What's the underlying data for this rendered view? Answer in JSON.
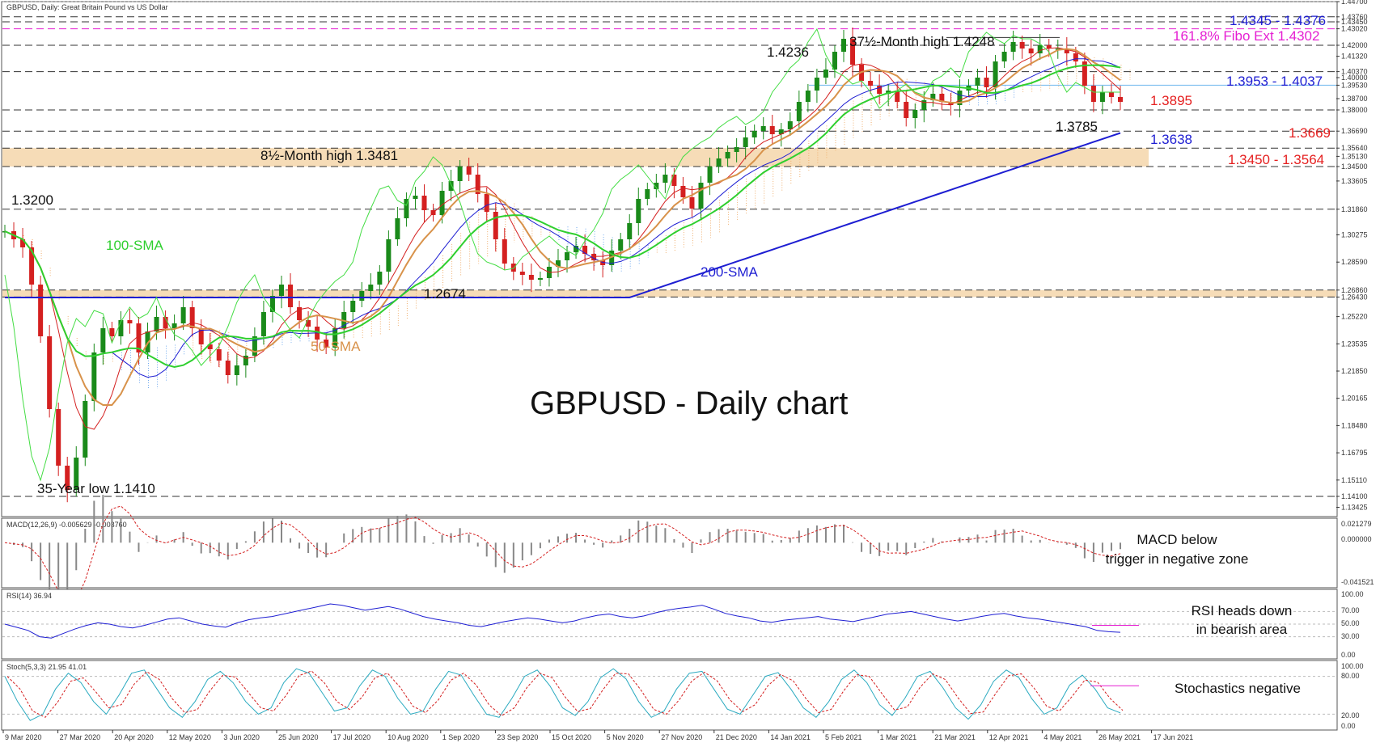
{
  "chart_data": [
    {
      "type": "candlestick",
      "header": "GBPUSD, Daily: Great Britain Pound vs US Dollar",
      "title": "GBPUSD - Daily chart",
      "ylim": [
        1.1285,
        1.447
      ],
      "y_ticks": [
        "1.44700",
        "1.43760",
        "1.43450",
        "1.43020",
        "1.42000",
        "1.41320",
        "1.40370",
        "1.40000",
        "1.39530",
        "1.38700",
        "1.38000",
        "1.36690",
        "1.35640",
        "1.35130",
        "1.34500",
        "1.33605",
        "1.31860",
        "1.30275",
        "1.28590",
        "1.26860",
        "1.26430",
        "1.25220",
        "1.23535",
        "1.21850",
        "1.20165",
        "1.18480",
        "1.16795",
        "1.15110",
        "1.14100",
        "1.13425"
      ],
      "x_labels": [
        "9 Mar 2020",
        "27 Mar 2020",
        "20 Apr 2020",
        "12 May 2020",
        "3 Jun 2020",
        "25 Jun 2020",
        "17 Jul 2020",
        "10 Aug 2020",
        "1 Sep 2020",
        "23 Sep 2020",
        "15 Oct 2020",
        "5 Nov 2020",
        "27 Nov 2020",
        "21 Dec 2020",
        "14 Jan 2021",
        "5 Feb 2021",
        "1 Mar 2021",
        "21 Mar 2021",
        "12 Apr 2021",
        "4 May 2021",
        "26 May 2021",
        "17 Jun 2021"
      ],
      "close_path": [
        1.305,
        1.3,
        1.295,
        1.272,
        1.24,
        1.195,
        1.16,
        1.145,
        1.165,
        1.2,
        1.23,
        1.245,
        1.24,
        1.25,
        1.248,
        1.23,
        1.243,
        1.252,
        1.245,
        1.248,
        1.258,
        1.245,
        1.235,
        1.232,
        1.225,
        1.216,
        1.222,
        1.228,
        1.24,
        1.255,
        1.265,
        1.272,
        1.258,
        1.25,
        1.246,
        1.238,
        1.233,
        1.245,
        1.255,
        1.262,
        1.268,
        1.272,
        1.28,
        1.3,
        1.313,
        1.325,
        1.327,
        1.318,
        1.315,
        1.33,
        1.336,
        1.345,
        1.34,
        1.328,
        1.317,
        1.3,
        1.285,
        1.28,
        1.278,
        1.275,
        1.276,
        1.283,
        1.287,
        1.292,
        1.296,
        1.291,
        1.287,
        1.284,
        1.293,
        1.3,
        1.31,
        1.325,
        1.331,
        1.335,
        1.34,
        1.333,
        1.326,
        1.319,
        1.335,
        1.345,
        1.35,
        1.354,
        1.357,
        1.363,
        1.367,
        1.37,
        1.365,
        1.368,
        1.373,
        1.385,
        1.392,
        1.4,
        1.405,
        1.416,
        1.424,
        1.408,
        1.398,
        1.395,
        1.39,
        1.392,
        1.385,
        1.375,
        1.38,
        1.386,
        1.39,
        1.385,
        1.383,
        1.392,
        1.395,
        1.4,
        1.394,
        1.41,
        1.416,
        1.422,
        1.418,
        1.415,
        1.42,
        1.418,
        1.418,
        1.415,
        1.41,
        1.395,
        1.385,
        1.391,
        1.388,
        1.385
      ],
      "levels": [
        {
          "price": 1.447,
          "style": "solid-thin"
        },
        {
          "price": 1.4376,
          "style": "dashed"
        },
        {
          "price": 1.4345,
          "style": "dashed"
        },
        {
          "price": 1.4302,
          "style": "dashed-magenta"
        },
        {
          "price": 1.4248,
          "style": "solid-short"
        },
        {
          "price": 1.42,
          "style": "dashed"
        },
        {
          "price": 1.4037,
          "style": "dashed"
        },
        {
          "price": 1.3953,
          "style": "solid-lightblue"
        },
        {
          "price": 1.38,
          "style": "dashed"
        },
        {
          "price": 1.3669,
          "style": "dashed"
        },
        {
          "price": 1.3564,
          "style": "dashed"
        },
        {
          "price": 1.345,
          "style": "dashed"
        },
        {
          "price": 1.3186,
          "style": "dashed"
        },
        {
          "price": 1.2686,
          "style": "dashed"
        },
        {
          "price": 1.2643,
          "style": "dashed"
        },
        {
          "price": 1.141,
          "style": "dashed"
        }
      ],
      "zones": [
        {
          "from": 1.345,
          "to": 1.3564,
          "color": "#f5d6aa"
        },
        {
          "from": 1.2643,
          "to": 1.2686,
          "color": "#f5d6aa"
        }
      ],
      "annotations": [
        {
          "text": "1.4345 - 1.4376",
          "color": "#1e1ed2"
        },
        {
          "text": "161.8% Fibo Ext 1.4302",
          "color": "#e51ed2"
        },
        {
          "text": "37½-Month high 1.4248",
          "color": "#111111"
        },
        {
          "text": "1.4236",
          "color": "#111111"
        },
        {
          "text": "1.3953 - 1.4037",
          "color": "#1e1ed2"
        },
        {
          "text": "1.3895",
          "color": "#e52020"
        },
        {
          "text": "1.3785",
          "color": "#111111"
        },
        {
          "text": "1.3669",
          "color": "#e52020"
        },
        {
          "text": "1.3638",
          "color": "#1e1ed2"
        },
        {
          "text": "1.3450 - 1.3564",
          "color": "#e52020"
        },
        {
          "text": "8½-Month high 1.3481",
          "color": "#111111"
        },
        {
          "text": "1.3200",
          "color": "#111111"
        },
        {
          "text": "100-SMA",
          "color": "#2fcf2f"
        },
        {
          "text": "200-SMA",
          "color": "#1e1ed2"
        },
        {
          "text": "1.2674",
          "color": "#111111"
        },
        {
          "text": "50-SMA",
          "color": "#d8924a"
        },
        {
          "text": "35-Year low 1.1410",
          "color": "#111111"
        }
      ],
      "series": [
        {
          "name": "100-SMA",
          "color": "#2fcf2f"
        },
        {
          "name": "200-SMA",
          "color": "#1e1ed2"
        },
        {
          "name": "50-SMA",
          "color": "#d8924a"
        }
      ]
    },
    {
      "type": "histogram",
      "header": "MACD(12,26,9) -0.005629 -0.003760",
      "y_ticks": [
        "0.021279",
        "0.000000",
        "-0.041521"
      ],
      "ylim": [
        -0.0435,
        0.0225
      ],
      "note_lines": [
        "MACD below",
        "trigger in negative zone"
      ]
    },
    {
      "type": "line",
      "header": "RSI(14) 36.94",
      "y_ticks": [
        "100.00",
        "70.00",
        "50.00",
        "30.00",
        "0.00"
      ],
      "ylim": [
        0,
        100
      ],
      "values": [
        50,
        45,
        40,
        30,
        28,
        35,
        42,
        48,
        52,
        50,
        46,
        44,
        48,
        53,
        58,
        60,
        55,
        50,
        47,
        45,
        52,
        57,
        60,
        62,
        66,
        70,
        74,
        78,
        82,
        80,
        76,
        72,
        75,
        78,
        74,
        68,
        62,
        58,
        55,
        52,
        48,
        46,
        50,
        54,
        57,
        60,
        58,
        55,
        52,
        55,
        60,
        64,
        66,
        62,
        60,
        63,
        68,
        72,
        75,
        77,
        80,
        74,
        67,
        63,
        60,
        55,
        53,
        56,
        58,
        60,
        62,
        58,
        56,
        54,
        58,
        62,
        66,
        68,
        70,
        66,
        62,
        58,
        55,
        58,
        62,
        65,
        67,
        63,
        60,
        58,
        55,
        52,
        49,
        46,
        40,
        38,
        37
      ],
      "note_lines": [
        "RSI heads down",
        "in bearish area"
      ]
    },
    {
      "type": "line",
      "header": "Stoch(5,3,3) 21.95 41.01",
      "y_ticks": [
        "100.00",
        "80.00",
        "20.00",
        "0.00"
      ],
      "ylim": [
        0,
        100
      ],
      "values": [
        80,
        40,
        10,
        20,
        60,
        85,
        70,
        40,
        20,
        50,
        85,
        90,
        60,
        30,
        15,
        40,
        75,
        88,
        70,
        40,
        20,
        30,
        70,
        92,
        85,
        55,
        25,
        30,
        65,
        90,
        80,
        45,
        20,
        25,
        60,
        88,
        82,
        50,
        20,
        15,
        45,
        80,
        90,
        65,
        30,
        18,
        40,
        78,
        92,
        76,
        40,
        15,
        25,
        60,
        85,
        88,
        58,
        28,
        20,
        50,
        80,
        86,
        60,
        30,
        15,
        40,
        75,
        90,
        70,
        35,
        18,
        45,
        80,
        88,
        62,
        30,
        12,
        35,
        72,
        90,
        78,
        45,
        20,
        30,
        66,
        82,
        60,
        30,
        22
      ],
      "note_lines": [
        "Stochastics negative"
      ]
    }
  ]
}
